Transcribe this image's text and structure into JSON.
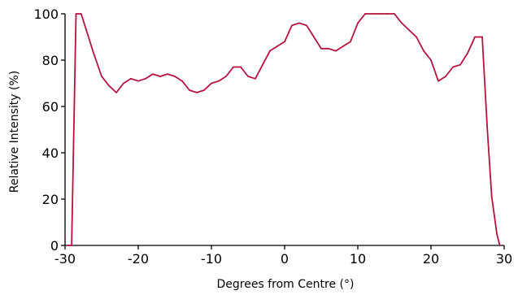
{
  "chart_data": {
    "type": "line",
    "title": "",
    "xlabel": "Degrees from Centre (°)",
    "ylabel": "Relative Intensity (%)",
    "xlim": [
      -30,
      30
    ],
    "ylim": [
      0,
      100
    ],
    "xticks": [
      -30,
      -20,
      -10,
      0,
      10,
      20,
      30
    ],
    "yticks": [
      0,
      20,
      40,
      60,
      80,
      100
    ],
    "grid": false,
    "legend": "none",
    "colors": {
      "line": "#b5123e",
      "axis": "#000000",
      "background": "#ffffff"
    },
    "series": [
      {
        "x": [
          -29.7,
          -29.1,
          -28.5,
          -27.8,
          -27.1,
          -26.1,
          -25.0,
          -24.0,
          -23.0,
          -22.0,
          -21.0,
          -20.0,
          -19.0,
          -18.0,
          -17.0,
          -16.0,
          -15.0,
          -14.0,
          -13.0,
          -12.0,
          -11.0,
          -10.0,
          -9.0,
          -8.0,
          -7.0,
          -6.0,
          -5.0,
          -4.0,
          -3.0,
          -2.0,
          -1.0,
          0.0,
          1.0,
          2.0,
          3.0,
          4.0,
          5.0,
          6.0,
          7.0,
          8.0,
          9.0,
          10.0,
          11.0,
          12.0,
          13.0,
          14.0,
          15.0,
          16.0,
          17.0,
          18.0,
          19.0,
          20.0,
          21.0,
          22.0,
          23.0,
          24.0,
          25.0,
          26.0,
          27.0,
          27.7,
          28.3,
          29.0,
          29.4
        ],
        "y": [
          0,
          0,
          100,
          100,
          93,
          83,
          73,
          69,
          66,
          70,
          72,
          71,
          72,
          74,
          73,
          74,
          73,
          71,
          67,
          66,
          67,
          70,
          71,
          73,
          77,
          77,
          73,
          72,
          78,
          84,
          86,
          88,
          95,
          96,
          95,
          90,
          85,
          85,
          84,
          86,
          88,
          96,
          100,
          100,
          100,
          100,
          100,
          96,
          93,
          90,
          84,
          80,
          71,
          73,
          77,
          78,
          83,
          90,
          90,
          50,
          21,
          5,
          0
        ]
      }
    ]
  }
}
